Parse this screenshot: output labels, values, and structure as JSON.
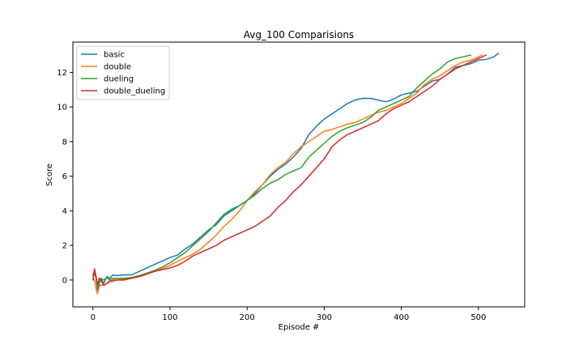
{
  "chart_data": {
    "type": "line",
    "title": "Avg_100 Comparisions",
    "xlabel": "Episode #",
    "ylabel": "Score",
    "xlim": [
      -26,
      560
    ],
    "ylim": [
      -1.55,
      13.75
    ],
    "xticks": [
      0,
      100,
      200,
      300,
      400,
      500
    ],
    "yticks": [
      0,
      2,
      4,
      6,
      8,
      10,
      12
    ],
    "grid": false,
    "legend_position": "top-left",
    "series": [
      {
        "name": "basic",
        "color": "#1f77b4",
        "points": [
          [
            0,
            0.2
          ],
          [
            2,
            0.4
          ],
          [
            4,
            0.1
          ],
          [
            6,
            -0.6
          ],
          [
            8,
            -0.3
          ],
          [
            10,
            0.1
          ],
          [
            14,
            -0.2
          ],
          [
            18,
            0.2
          ],
          [
            22,
            0.1
          ],
          [
            26,
            0.3
          ],
          [
            30,
            0.25
          ],
          [
            40,
            0.3
          ],
          [
            50,
            0.3
          ],
          [
            60,
            0.5
          ],
          [
            70,
            0.7
          ],
          [
            80,
            0.9
          ],
          [
            90,
            1.1
          ],
          [
            100,
            1.3
          ],
          [
            110,
            1.45
          ],
          [
            120,
            1.8
          ],
          [
            130,
            2.1
          ],
          [
            140,
            2.5
          ],
          [
            150,
            2.9
          ],
          [
            160,
            3.2
          ],
          [
            170,
            3.7
          ],
          [
            180,
            4.0
          ],
          [
            190,
            4.3
          ],
          [
            200,
            4.6
          ],
          [
            210,
            5.0
          ],
          [
            220,
            5.5
          ],
          [
            230,
            6.0
          ],
          [
            240,
            6.4
          ],
          [
            250,
            6.7
          ],
          [
            260,
            7.1
          ],
          [
            270,
            7.6
          ],
          [
            280,
            8.4
          ],
          [
            290,
            8.9
          ],
          [
            300,
            9.3
          ],
          [
            310,
            9.6
          ],
          [
            320,
            9.9
          ],
          [
            330,
            10.2
          ],
          [
            340,
            10.4
          ],
          [
            350,
            10.5
          ],
          [
            360,
            10.5
          ],
          [
            370,
            10.4
          ],
          [
            380,
            10.3
          ],
          [
            390,
            10.45
          ],
          [
            400,
            10.7
          ],
          [
            410,
            10.8
          ],
          [
            420,
            10.9
          ],
          [
            430,
            11.2
          ],
          [
            440,
            11.5
          ],
          [
            450,
            11.6
          ],
          [
            460,
            11.9
          ],
          [
            470,
            12.3
          ],
          [
            480,
            12.4
          ],
          [
            490,
            12.5
          ],
          [
            500,
            12.7
          ],
          [
            510,
            12.75
          ],
          [
            520,
            12.9
          ],
          [
            526,
            13.1
          ]
        ]
      },
      {
        "name": "double",
        "color": "#ff7f0e",
        "points": [
          [
            0,
            0.1
          ],
          [
            2,
            0.0
          ],
          [
            4,
            -0.5
          ],
          [
            6,
            -0.8
          ],
          [
            8,
            -0.4
          ],
          [
            10,
            -0.3
          ],
          [
            14,
            -0.3
          ],
          [
            18,
            -0.2
          ],
          [
            22,
            0.0
          ],
          [
            26,
            -0.1
          ],
          [
            30,
            0.0
          ],
          [
            40,
            0.05
          ],
          [
            50,
            0.1
          ],
          [
            60,
            0.2
          ],
          [
            70,
            0.35
          ],
          [
            80,
            0.5
          ],
          [
            90,
            0.65
          ],
          [
            100,
            0.85
          ],
          [
            110,
            1.1
          ],
          [
            120,
            1.3
          ],
          [
            130,
            1.5
          ],
          [
            140,
            1.8
          ],
          [
            150,
            2.2
          ],
          [
            160,
            2.6
          ],
          [
            170,
            3.1
          ],
          [
            180,
            3.5
          ],
          [
            190,
            4.0
          ],
          [
            200,
            4.6
          ],
          [
            210,
            5.1
          ],
          [
            220,
            5.5
          ],
          [
            230,
            6.1
          ],
          [
            240,
            6.5
          ],
          [
            250,
            6.8
          ],
          [
            260,
            7.3
          ],
          [
            270,
            7.7
          ],
          [
            280,
            8.0
          ],
          [
            290,
            8.3
          ],
          [
            300,
            8.6
          ],
          [
            310,
            8.7
          ],
          [
            320,
            8.85
          ],
          [
            330,
            9.0
          ],
          [
            340,
            9.1
          ],
          [
            350,
            9.3
          ],
          [
            360,
            9.5
          ],
          [
            370,
            9.7
          ],
          [
            380,
            9.8
          ],
          [
            390,
            10.0
          ],
          [
            400,
            10.2
          ],
          [
            410,
            10.5
          ],
          [
            420,
            10.8
          ],
          [
            430,
            11.3
          ],
          [
            440,
            11.6
          ],
          [
            450,
            11.8
          ],
          [
            460,
            12.1
          ],
          [
            470,
            12.4
          ],
          [
            480,
            12.6
          ],
          [
            490,
            12.7
          ],
          [
            500,
            12.9
          ],
          [
            505,
            13.0
          ]
        ]
      },
      {
        "name": "dueling",
        "color": "#2ca02c",
        "points": [
          [
            0,
            0.3
          ],
          [
            2,
            0.5
          ],
          [
            4,
            0.2
          ],
          [
            6,
            -0.4
          ],
          [
            8,
            -0.2
          ],
          [
            10,
            0.1
          ],
          [
            14,
            0.0
          ],
          [
            18,
            0.15
          ],
          [
            22,
            0.0
          ],
          [
            26,
            0.1
          ],
          [
            30,
            0.1
          ],
          [
            40,
            0.1
          ],
          [
            50,
            0.15
          ],
          [
            60,
            0.25
          ],
          [
            70,
            0.4
          ],
          [
            80,
            0.55
          ],
          [
            90,
            0.75
          ],
          [
            100,
            1.0
          ],
          [
            110,
            1.3
          ],
          [
            120,
            1.6
          ],
          [
            130,
            2.0
          ],
          [
            140,
            2.4
          ],
          [
            150,
            2.8
          ],
          [
            160,
            3.3
          ],
          [
            170,
            3.8
          ],
          [
            180,
            4.1
          ],
          [
            190,
            4.3
          ],
          [
            200,
            4.6
          ],
          [
            210,
            4.9
          ],
          [
            220,
            5.3
          ],
          [
            230,
            5.6
          ],
          [
            240,
            5.8
          ],
          [
            250,
            6.1
          ],
          [
            260,
            6.3
          ],
          [
            270,
            6.5
          ],
          [
            280,
            7.1
          ],
          [
            290,
            7.5
          ],
          [
            300,
            7.9
          ],
          [
            310,
            8.3
          ],
          [
            320,
            8.6
          ],
          [
            330,
            8.8
          ],
          [
            340,
            8.95
          ],
          [
            350,
            9.1
          ],
          [
            360,
            9.4
          ],
          [
            370,
            9.8
          ],
          [
            380,
            10.0
          ],
          [
            390,
            10.2
          ],
          [
            400,
            10.4
          ],
          [
            410,
            10.6
          ],
          [
            420,
            11.1
          ],
          [
            430,
            11.5
          ],
          [
            440,
            11.9
          ],
          [
            450,
            12.2
          ],
          [
            460,
            12.6
          ],
          [
            470,
            12.8
          ],
          [
            480,
            12.9
          ],
          [
            490,
            13.0
          ]
        ]
      },
      {
        "name": "double_dueling",
        "color": "#d62728",
        "points": [
          [
            0,
            0.0
          ],
          [
            2,
            0.65
          ],
          [
            4,
            0.2
          ],
          [
            6,
            -0.3
          ],
          [
            8,
            0.1
          ],
          [
            10,
            0.0
          ],
          [
            14,
            -0.3
          ],
          [
            18,
            -0.2
          ],
          [
            22,
            -0.1
          ],
          [
            26,
            0.0
          ],
          [
            30,
            0.0
          ],
          [
            40,
            0.0
          ],
          [
            50,
            0.1
          ],
          [
            60,
            0.2
          ],
          [
            70,
            0.35
          ],
          [
            80,
            0.5
          ],
          [
            90,
            0.6
          ],
          [
            100,
            0.7
          ],
          [
            110,
            0.85
          ],
          [
            120,
            1.1
          ],
          [
            130,
            1.4
          ],
          [
            140,
            1.6
          ],
          [
            150,
            1.8
          ],
          [
            160,
            2.0
          ],
          [
            170,
            2.3
          ],
          [
            180,
            2.5
          ],
          [
            190,
            2.7
          ],
          [
            200,
            2.9
          ],
          [
            210,
            3.1
          ],
          [
            220,
            3.4
          ],
          [
            230,
            3.7
          ],
          [
            240,
            4.2
          ],
          [
            250,
            4.6
          ],
          [
            260,
            5.1
          ],
          [
            270,
            5.5
          ],
          [
            280,
            6.0
          ],
          [
            290,
            6.5
          ],
          [
            300,
            7.0
          ],
          [
            310,
            7.7
          ],
          [
            320,
            8.1
          ],
          [
            330,
            8.4
          ],
          [
            340,
            8.6
          ],
          [
            350,
            8.8
          ],
          [
            360,
            9.0
          ],
          [
            370,
            9.2
          ],
          [
            380,
            9.6
          ],
          [
            390,
            9.9
          ],
          [
            400,
            10.1
          ],
          [
            410,
            10.3
          ],
          [
            420,
            10.6
          ],
          [
            430,
            10.9
          ],
          [
            440,
            11.2
          ],
          [
            450,
            11.6
          ],
          [
            460,
            11.9
          ],
          [
            470,
            12.2
          ],
          [
            480,
            12.4
          ],
          [
            490,
            12.6
          ],
          [
            500,
            12.8
          ],
          [
            510,
            13.0
          ]
        ]
      }
    ]
  }
}
